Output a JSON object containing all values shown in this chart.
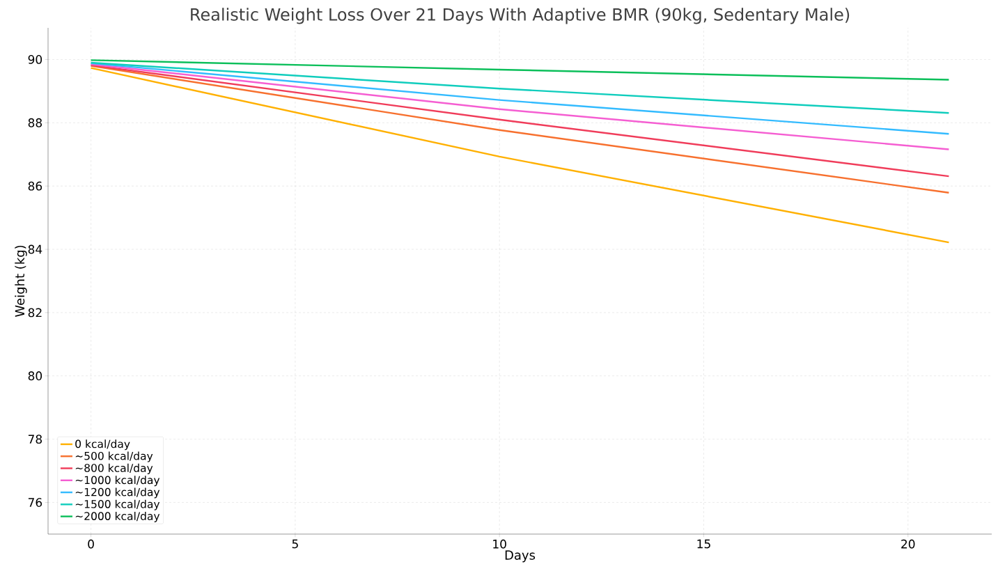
{
  "chart_data": {
    "type": "line",
    "title": "Realistic Weight Loss Over 21 Days With Adaptive BMR (90kg, Sedentary Male)",
    "xlabel": "Days",
    "ylabel": "Weight (kg)",
    "x": [
      0,
      10,
      21
    ],
    "series": [
      {
        "name": "0 kcal/day",
        "color": "#ffb000",
        "values": [
          89.73,
          86.93,
          84.22
        ]
      },
      {
        "name": "~500 kcal/day",
        "color": "#f7702e",
        "values": [
          89.8,
          87.77,
          85.79
        ]
      },
      {
        "name": "~800 kcal/day",
        "color": "#f03c5a",
        "values": [
          89.82,
          88.1,
          86.31
        ]
      },
      {
        "name": "~1000 kcal/day",
        "color": "#f55ed2",
        "values": [
          89.85,
          88.43,
          87.16
        ]
      },
      {
        "name": "~1200 kcal/day",
        "color": "#33bbff",
        "values": [
          89.88,
          88.72,
          87.65
        ]
      },
      {
        "name": "~1500 kcal/day",
        "color": "#10cdbd",
        "values": [
          89.9,
          89.08,
          88.31
        ]
      },
      {
        "name": "~2000 kcal/day",
        "color": "#0bbf5a",
        "values": [
          89.98,
          89.68,
          89.36
        ]
      }
    ],
    "xlim": [
      -1.05,
      22.05
    ],
    "ylim": [
      75,
      91
    ],
    "xticks": [
      0,
      5,
      10,
      15,
      20
    ],
    "yticks": [
      76,
      78,
      80,
      82,
      84,
      86,
      88,
      90
    ],
    "grid": true,
    "legend": "bottom left",
    "line_style": "solid",
    "marker": "none"
  }
}
